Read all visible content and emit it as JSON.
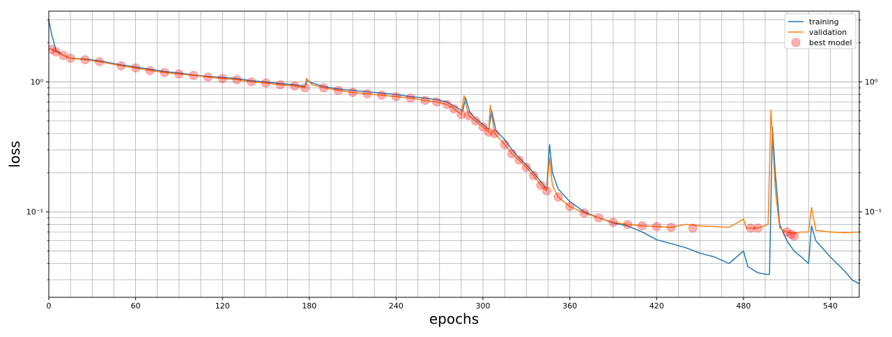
{
  "chart_data": {
    "type": "line",
    "title": "",
    "xlabel": "epochs",
    "ylabel": "loss",
    "xlim": [
      0,
      560
    ],
    "ylim": [
      0.022,
      3.5
    ],
    "yscale": "log",
    "grid": true,
    "legend_position": "top-right",
    "x_ticks": [
      0,
      60,
      120,
      180,
      240,
      300,
      360,
      420,
      480,
      540
    ],
    "x_tick_labels": [
      "0",
      "60",
      "120",
      "180",
      "240",
      "300",
      "360",
      "420",
      "480",
      "540"
    ],
    "y_major_ticks": [
      0.1,
      1
    ],
    "y_major_tick_labels": [
      "10⁻¹",
      "10⁰"
    ],
    "series": [
      {
        "name": "training",
        "color": "#1f77b4",
        "points": [
          [
            0,
            3.0
          ],
          [
            2,
            2.3
          ],
          [
            5,
            1.75
          ],
          [
            10,
            1.6
          ],
          [
            15,
            1.52
          ],
          [
            25,
            1.5
          ],
          [
            35,
            1.45
          ],
          [
            50,
            1.35
          ],
          [
            60,
            1.3
          ],
          [
            70,
            1.25
          ],
          [
            80,
            1.2
          ],
          [
            90,
            1.17
          ],
          [
            100,
            1.13
          ],
          [
            110,
            1.1
          ],
          [
            120,
            1.08
          ],
          [
            130,
            1.06
          ],
          [
            140,
            1.02
          ],
          [
            150,
            1.0
          ],
          [
            160,
            0.97
          ],
          [
            170,
            0.95
          ],
          [
            177,
            0.92
          ],
          [
            179,
            1.03
          ],
          [
            182,
            0.98
          ],
          [
            190,
            0.92
          ],
          [
            200,
            0.88
          ],
          [
            210,
            0.86
          ],
          [
            220,
            0.84
          ],
          [
            230,
            0.82
          ],
          [
            240,
            0.8
          ],
          [
            250,
            0.77
          ],
          [
            260,
            0.75
          ],
          [
            268,
            0.73
          ],
          [
            275,
            0.7
          ],
          [
            280,
            0.65
          ],
          [
            286,
            0.6
          ],
          [
            288,
            0.75
          ],
          [
            291,
            0.58
          ],
          [
            295,
            0.52
          ],
          [
            300,
            0.47
          ],
          [
            304,
            0.43
          ],
          [
            306,
            0.6
          ],
          [
            309,
            0.42
          ],
          [
            315,
            0.36
          ],
          [
            320,
            0.3
          ],
          [
            325,
            0.26
          ],
          [
            330,
            0.23
          ],
          [
            335,
            0.2
          ],
          [
            340,
            0.17
          ],
          [
            344,
            0.15
          ],
          [
            346,
            0.33
          ],
          [
            348,
            0.2
          ],
          [
            352,
            0.15
          ],
          [
            360,
            0.12
          ],
          [
            370,
            0.1
          ],
          [
            380,
            0.09
          ],
          [
            390,
            0.082
          ],
          [
            400,
            0.078
          ],
          [
            410,
            0.07
          ],
          [
            420,
            0.061
          ],
          [
            430,
            0.057
          ],
          [
            440,
            0.053
          ],
          [
            450,
            0.048
          ],
          [
            460,
            0.045
          ],
          [
            470,
            0.04
          ],
          [
            480,
            0.05
          ],
          [
            483,
            0.038
          ],
          [
            490,
            0.034
          ],
          [
            496,
            0.033
          ],
          [
            498,
            0.033
          ],
          [
            500,
            0.45
          ],
          [
            502,
            0.2
          ],
          [
            505,
            0.08
          ],
          [
            510,
            0.06
          ],
          [
            515,
            0.05
          ],
          [
            520,
            0.045
          ],
          [
            525,
            0.04
          ],
          [
            527,
            0.078
          ],
          [
            530,
            0.06
          ],
          [
            540,
            0.045
          ],
          [
            550,
            0.035
          ],
          [
            555,
            0.03
          ],
          [
            560,
            0.028
          ]
        ]
      },
      {
        "name": "validation",
        "color": "#ff7f0e",
        "points": [
          [
            0,
            1.8
          ],
          [
            2,
            1.78
          ],
          [
            5,
            1.7
          ],
          [
            10,
            1.6
          ],
          [
            15,
            1.52
          ],
          [
            25,
            1.48
          ],
          [
            35,
            1.43
          ],
          [
            50,
            1.33
          ],
          [
            60,
            1.28
          ],
          [
            70,
            1.22
          ],
          [
            80,
            1.18
          ],
          [
            90,
            1.15
          ],
          [
            100,
            1.12
          ],
          [
            110,
            1.09
          ],
          [
            120,
            1.06
          ],
          [
            130,
            1.04
          ],
          [
            140,
            1.0
          ],
          [
            150,
            0.98
          ],
          [
            160,
            0.95
          ],
          [
            170,
            0.93
          ],
          [
            177,
            0.9
          ],
          [
            178,
            1.06
          ],
          [
            182,
            0.95
          ],
          [
            190,
            0.9
          ],
          [
            200,
            0.86
          ],
          [
            210,
            0.83
          ],
          [
            220,
            0.81
          ],
          [
            230,
            0.79
          ],
          [
            240,
            0.77
          ],
          [
            250,
            0.75
          ],
          [
            260,
            0.72
          ],
          [
            268,
            0.7
          ],
          [
            275,
            0.67
          ],
          [
            280,
            0.62
          ],
          [
            285,
            0.56
          ],
          [
            287,
            0.78
          ],
          [
            290,
            0.55
          ],
          [
            295,
            0.5
          ],
          [
            300,
            0.45
          ],
          [
            304,
            0.41
          ],
          [
            305,
            0.66
          ],
          [
            308,
            0.4
          ],
          [
            315,
            0.33
          ],
          [
            320,
            0.28
          ],
          [
            325,
            0.25
          ],
          [
            330,
            0.22
          ],
          [
            335,
            0.19
          ],
          [
            340,
            0.16
          ],
          [
            344,
            0.145
          ],
          [
            346,
            0.26
          ],
          [
            348,
            0.16
          ],
          [
            352,
            0.13
          ],
          [
            360,
            0.11
          ],
          [
            370,
            0.098
          ],
          [
            380,
            0.09
          ],
          [
            390,
            0.083
          ],
          [
            400,
            0.08
          ],
          [
            410,
            0.078
          ],
          [
            420,
            0.077
          ],
          [
            430,
            0.076
          ],
          [
            440,
            0.08
          ],
          [
            450,
            0.078
          ],
          [
            460,
            0.077
          ],
          [
            470,
            0.076
          ],
          [
            480,
            0.088
          ],
          [
            482,
            0.075
          ],
          [
            490,
            0.075
          ],
          [
            497,
            0.08
          ],
          [
            499,
            0.61
          ],
          [
            502,
            0.15
          ],
          [
            505,
            0.075
          ],
          [
            510,
            0.07
          ],
          [
            515,
            0.068
          ],
          [
            520,
            0.07
          ],
          [
            525,
            0.07
          ],
          [
            527,
            0.108
          ],
          [
            530,
            0.072
          ],
          [
            540,
            0.07
          ],
          [
            550,
            0.069
          ],
          [
            560,
            0.07
          ]
        ]
      },
      {
        "name": "best model",
        "color": "#ff0000",
        "marker": "circle",
        "points": [
          [
            2,
            1.78
          ],
          [
            5,
            1.7
          ],
          [
            10,
            1.6
          ],
          [
            15,
            1.52
          ],
          [
            25,
            1.48
          ],
          [
            35,
            1.43
          ],
          [
            50,
            1.33
          ],
          [
            60,
            1.28
          ],
          [
            70,
            1.22
          ],
          [
            80,
            1.18
          ],
          [
            90,
            1.15
          ],
          [
            100,
            1.12
          ],
          [
            110,
            1.09
          ],
          [
            120,
            1.06
          ],
          [
            130,
            1.04
          ],
          [
            140,
            1.0
          ],
          [
            150,
            0.98
          ],
          [
            160,
            0.95
          ],
          [
            170,
            0.93
          ],
          [
            177,
            0.9
          ],
          [
            190,
            0.9
          ],
          [
            200,
            0.86
          ],
          [
            210,
            0.83
          ],
          [
            220,
            0.81
          ],
          [
            230,
            0.79
          ],
          [
            240,
            0.77
          ],
          [
            250,
            0.75
          ],
          [
            260,
            0.72
          ],
          [
            268,
            0.7
          ],
          [
            275,
            0.67
          ],
          [
            280,
            0.62
          ],
          [
            285,
            0.56
          ],
          [
            290,
            0.55
          ],
          [
            295,
            0.5
          ],
          [
            300,
            0.45
          ],
          [
            304,
            0.41
          ],
          [
            308,
            0.4
          ],
          [
            315,
            0.33
          ],
          [
            320,
            0.28
          ],
          [
            325,
            0.25
          ],
          [
            330,
            0.22
          ],
          [
            335,
            0.19
          ],
          [
            340,
            0.16
          ],
          [
            344,
            0.145
          ],
          [
            352,
            0.13
          ],
          [
            360,
            0.11
          ],
          [
            370,
            0.098
          ],
          [
            380,
            0.09
          ],
          [
            390,
            0.083
          ],
          [
            400,
            0.08
          ],
          [
            410,
            0.078
          ],
          [
            420,
            0.077
          ],
          [
            430,
            0.076
          ],
          [
            445,
            0.075
          ],
          [
            485,
            0.075
          ],
          [
            490,
            0.075
          ],
          [
            510,
            0.07
          ],
          [
            513,
            0.067
          ],
          [
            515,
            0.065
          ]
        ]
      }
    ]
  }
}
